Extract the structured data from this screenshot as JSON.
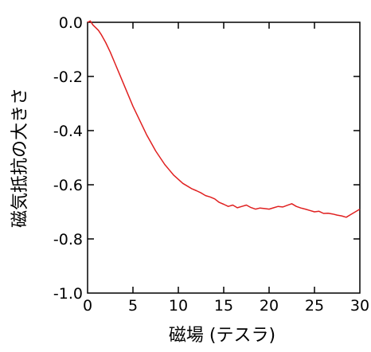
{
  "chart_data": {
    "type": "line",
    "title": "",
    "xlabel": "磁場 (テスラ)",
    "ylabel": "磁気抵抗の大きさ",
    "xlim": [
      0,
      30
    ],
    "ylim": [
      -1.0,
      0.0
    ],
    "x_ticks": [
      0,
      5,
      10,
      15,
      20,
      25,
      30
    ],
    "y_ticks": [
      0.0,
      -0.2,
      -0.4,
      -0.6,
      -0.8,
      -1.0
    ],
    "x_tick_labels": [
      "0",
      "5",
      "10",
      "15",
      "20",
      "25",
      "30"
    ],
    "y_tick_labels": [
      "0.0",
      "-0.2",
      "-0.4",
      "-0.6",
      "-0.8",
      "-1.0"
    ],
    "grid": false,
    "series": [
      {
        "color": "#e02020",
        "x": [
          0.0,
          0.3,
          0.6,
          0.9,
          1.2,
          1.5,
          2.0,
          2.5,
          3.0,
          3.5,
          4.0,
          4.5,
          5.0,
          5.5,
          6.0,
          6.5,
          7.0,
          7.5,
          8.0,
          8.5,
          9.0,
          9.5,
          10.0,
          10.5,
          11.0,
          11.5,
          12.0,
          12.5,
          13.0,
          13.5,
          14.0,
          14.5,
          15.0,
          15.5,
          16.0,
          16.5,
          17.0,
          17.5,
          18.0,
          18.5,
          19.0,
          19.5,
          20.0,
          20.5,
          21.0,
          21.5,
          22.0,
          22.5,
          23.0,
          23.5,
          24.0,
          24.5,
          25.0,
          25.5,
          26.0,
          26.5,
          27.0,
          27.5,
          28.0,
          28.5,
          29.0,
          29.5,
          30.0
        ],
        "y": [
          0.0,
          0.005,
          -0.01,
          -0.02,
          -0.03,
          -0.045,
          -0.075,
          -0.11,
          -0.15,
          -0.19,
          -0.23,
          -0.27,
          -0.31,
          -0.345,
          -0.38,
          -0.415,
          -0.445,
          -0.475,
          -0.5,
          -0.525,
          -0.545,
          -0.565,
          -0.58,
          -0.595,
          -0.605,
          -0.615,
          -0.622,
          -0.63,
          -0.64,
          -0.645,
          -0.652,
          -0.665,
          -0.672,
          -0.68,
          -0.675,
          -0.685,
          -0.68,
          -0.675,
          -0.684,
          -0.69,
          -0.686,
          -0.688,
          -0.69,
          -0.685,
          -0.68,
          -0.682,
          -0.676,
          -0.67,
          -0.68,
          -0.686,
          -0.69,
          -0.695,
          -0.7,
          -0.698,
          -0.706,
          -0.705,
          -0.708,
          -0.712,
          -0.715,
          -0.72,
          -0.71,
          -0.7,
          -0.69
        ]
      }
    ]
  }
}
